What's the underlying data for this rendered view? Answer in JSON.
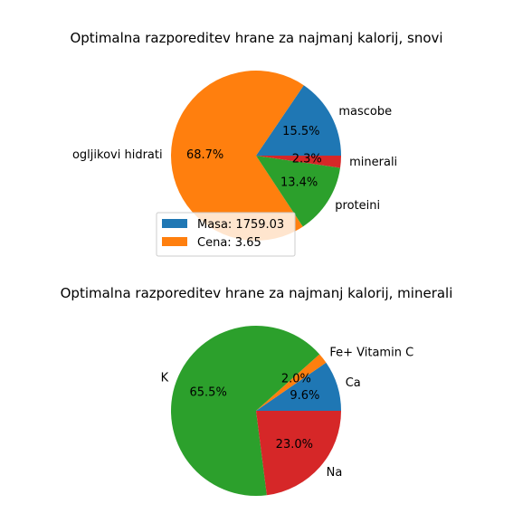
{
  "chart_data": [
    {
      "type": "pie",
      "title": "Optimalna razporeditev hrane za najmanj kalorij, snovi",
      "slices": [
        {
          "label": "mascobe",
          "percent": 15.5,
          "pct_label": "15.5%",
          "color": "#1f77b4"
        },
        {
          "label": "ogljikovi hidrati",
          "percent": 68.7,
          "pct_label": "68.7%",
          "color": "#ff7f0e"
        },
        {
          "label": "proteini",
          "percent": 13.4,
          "pct_label": "13.4%",
          "color": "#2ca02c"
        },
        {
          "label": "minerali",
          "percent": 2.3,
          "pct_label": "2.3%",
          "color": "#d62728"
        }
      ],
      "legend": {
        "placement": "lower-left-overlapping",
        "entries": [
          {
            "label": "Masa: 1759.03",
            "color": "#1f77b4"
          },
          {
            "label": "Cena: 3.65",
            "color": "#ff7f0e"
          }
        ]
      }
    },
    {
      "type": "pie",
      "title": "Optimalna razporeditev hrane za najmanj kalorij, minerali",
      "slices": [
        {
          "label": "Ca",
          "percent": 9.6,
          "pct_label": "9.6%",
          "color": "#1f77b4"
        },
        {
          "label": "Fe+ Vitamin C",
          "percent": 2.0,
          "pct_label": "2.0%",
          "color": "#ff7f0e"
        },
        {
          "label": "K",
          "percent": 65.5,
          "pct_label": "65.5%",
          "color": "#2ca02c"
        },
        {
          "label": "Na",
          "percent": 23.0,
          "pct_label": "23.0%",
          "color": "#d62728"
        }
      ]
    }
  ]
}
